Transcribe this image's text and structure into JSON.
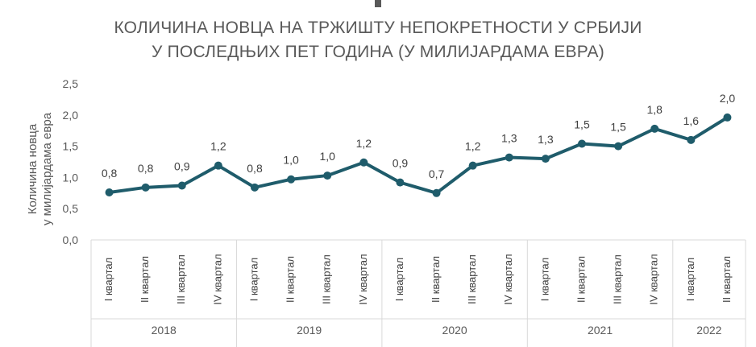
{
  "title_line1": "КОЛИЧИНА НОВЦА НА ТРЖИШТУ НЕПОКРЕТНОСТИ У СРБИЈИ",
  "title_line2": "У ПОСЛЕДЊИХ ПЕТ ГОДИНА (У МИЛИЈАРДАМА ЕВРА)",
  "ylabel_line1": "Количина новца",
  "ylabel_line2": "у милијардама евра",
  "colors": {
    "line": "#1f5c6b",
    "grid": "#d9d9d9",
    "text": "#595959"
  },
  "chart_data": {
    "type": "line",
    "title": "КОЛИЧИНА НОВЦА НА ТРЖИШТУ НЕПОКРЕТНОСТИ У СРБИЈИ У ПОСЛЕДЊИХ ПЕТ ГОДИНА (У МИЛИЈАРДАМА ЕВРА)",
    "ylabel": "Количина новца у милијардама евра",
    "xlabel": "",
    "ylim": [
      0,
      2.5
    ],
    "yticks": [
      "0,0",
      "0,5",
      "1,0",
      "1,5",
      "2,0",
      "2,5"
    ],
    "grid": false,
    "groups": [
      {
        "year": "2018",
        "quarters": [
          "I квартал",
          "II квартал",
          "III квартал",
          "IV квартал"
        ]
      },
      {
        "year": "2019",
        "quarters": [
          "I квартал",
          "II квартал",
          "III квартал",
          "IV квартал"
        ]
      },
      {
        "year": "2020",
        "quarters": [
          "I квартал",
          "II квартал",
          "III квартал",
          "IV квартал"
        ]
      },
      {
        "year": "2021",
        "quarters": [
          "I квартал",
          "II квартал",
          "III квартал",
          "IV квартал"
        ]
      },
      {
        "year": "2022",
        "quarters": [
          "I квартал",
          "II квартал"
        ]
      }
    ],
    "values": [
      0.76,
      0.84,
      0.87,
      1.19,
      0.84,
      0.97,
      1.03,
      1.24,
      0.92,
      0.75,
      1.19,
      1.32,
      1.3,
      1.54,
      1.5,
      1.78,
      1.6,
      1.96
    ],
    "labels": [
      "0,8",
      "0,8",
      "0,9",
      "1,2",
      "0,8",
      "1,0",
      "1,0",
      "1,2",
      "0,9",
      "0,7",
      "1,2",
      "1,3",
      "1,3",
      "1,5",
      "1,5",
      "1,8",
      "1,6",
      "2,0"
    ]
  }
}
